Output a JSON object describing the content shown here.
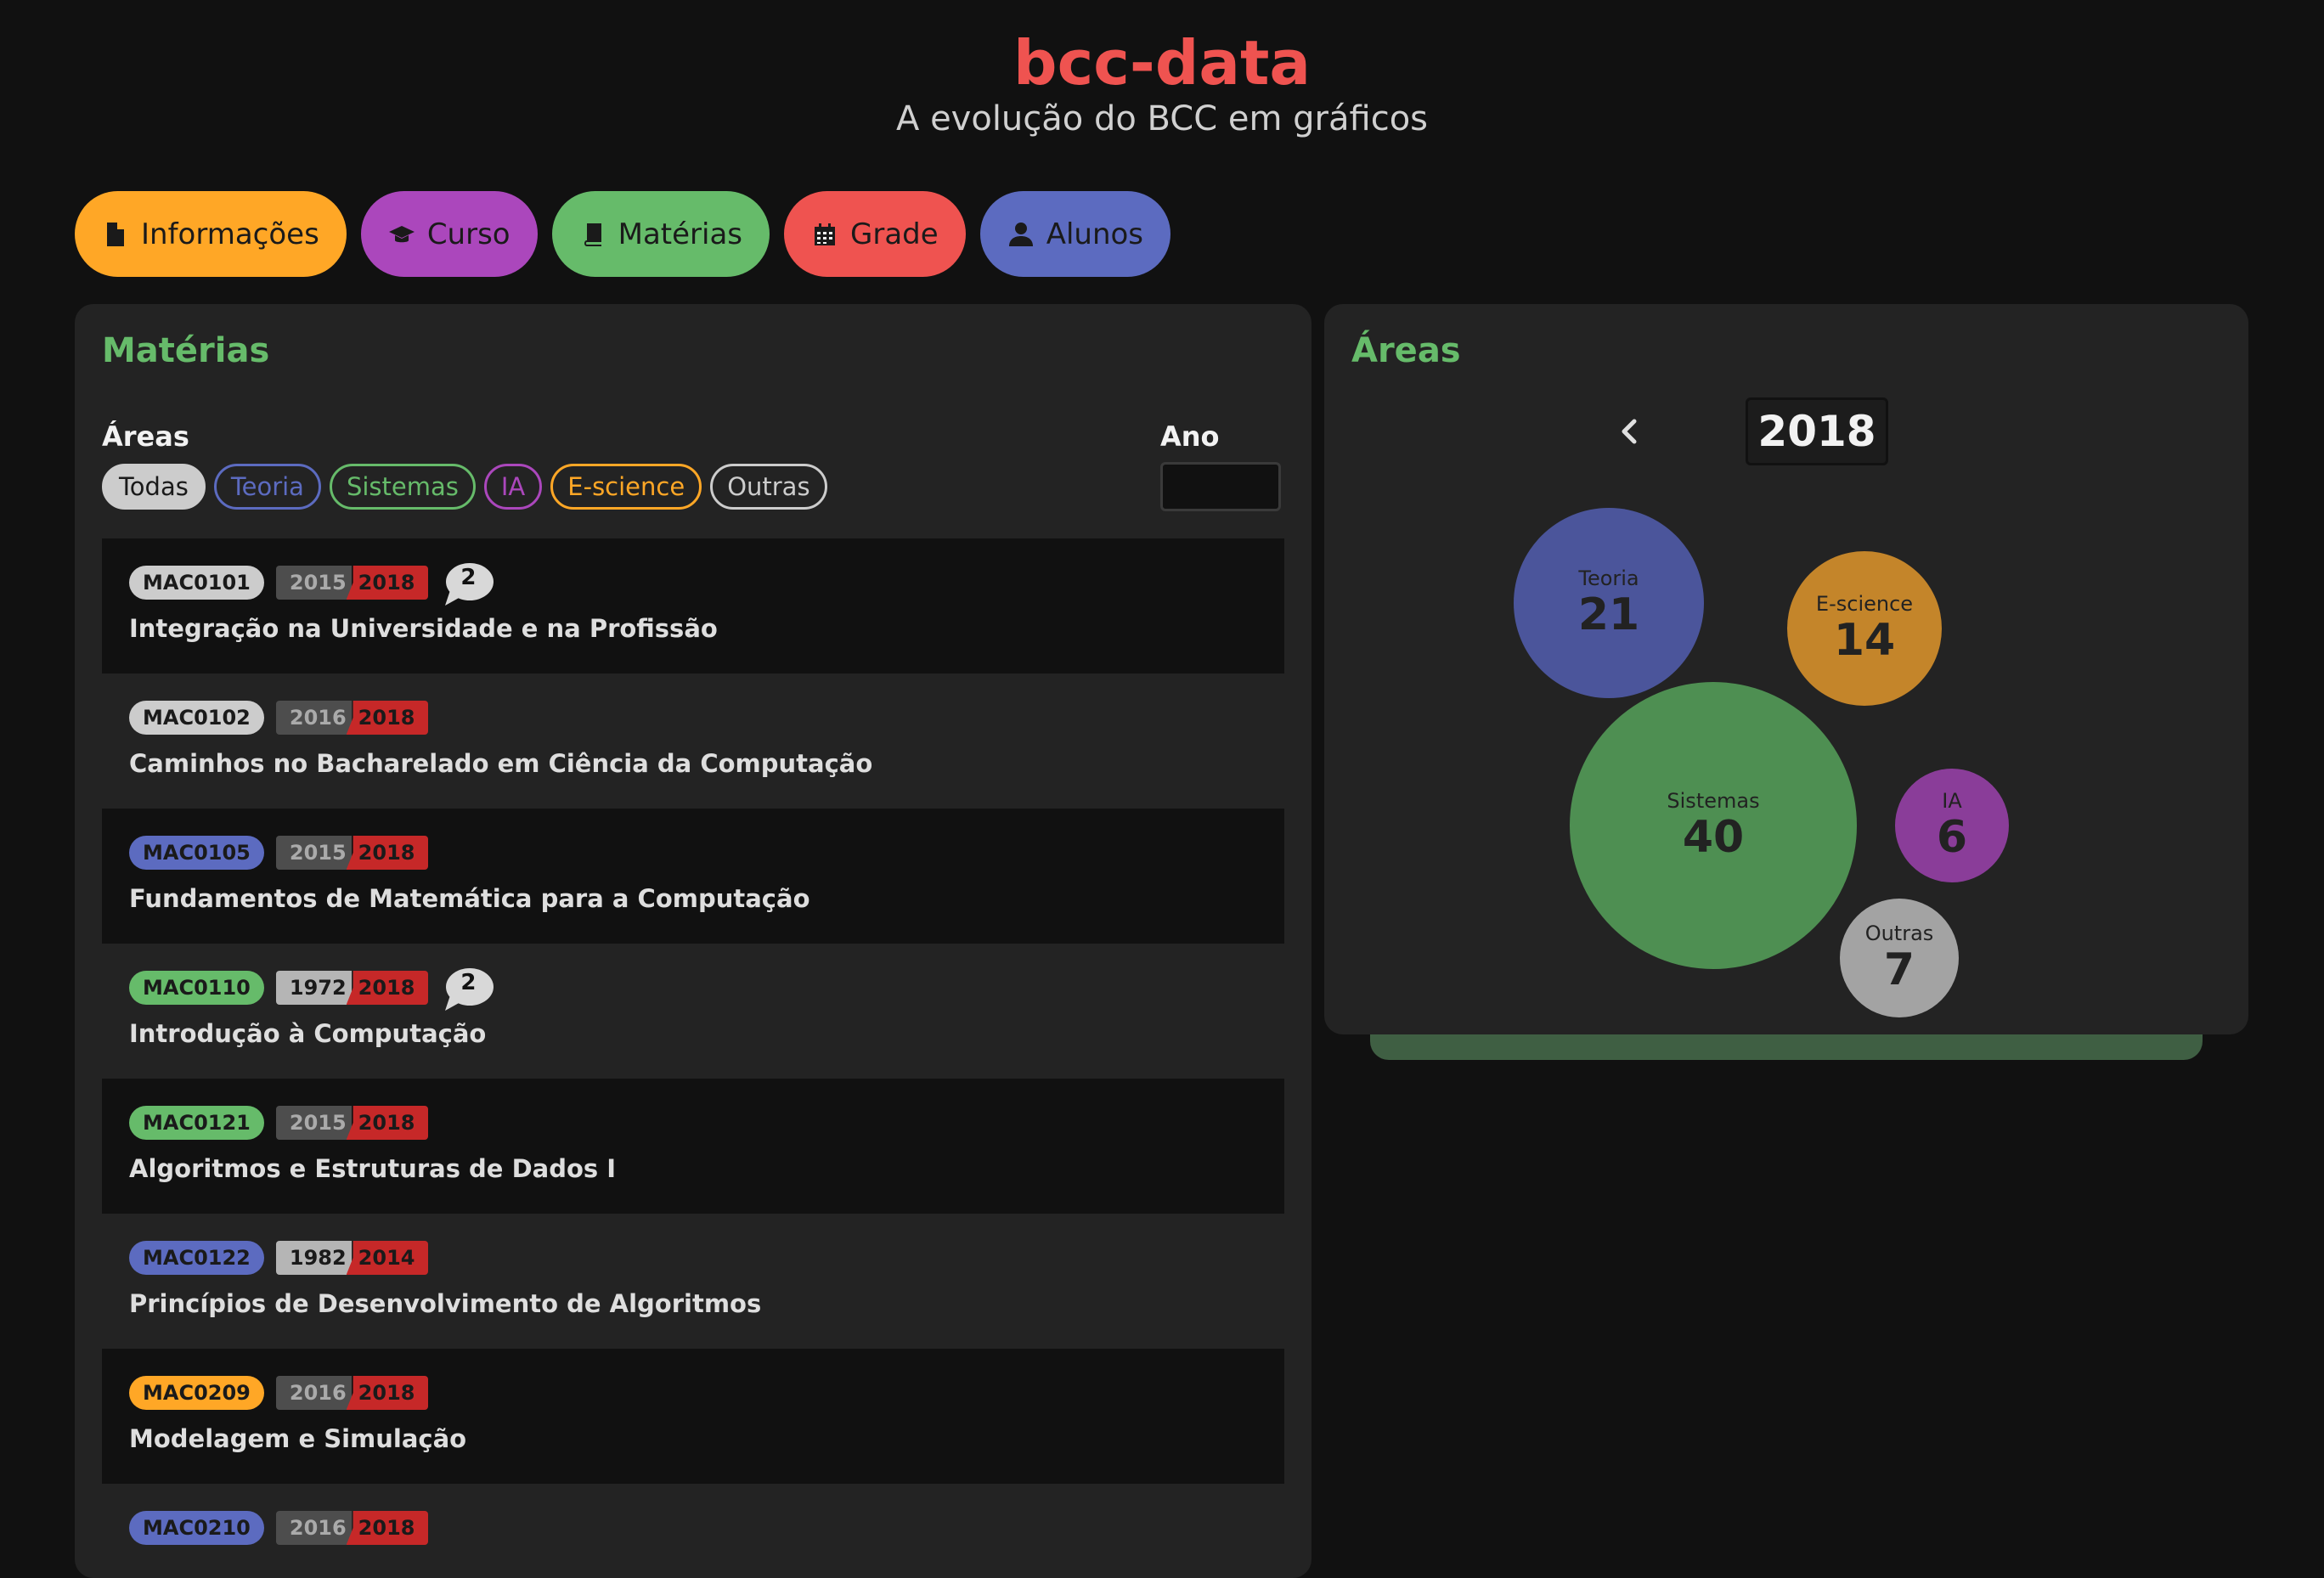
{
  "header": {
    "title": "bcc-data",
    "subtitle": "A evolução do BCC em gráficos"
  },
  "nav": [
    {
      "label": "Informações",
      "icon": "file-icon",
      "color": "#ffa726"
    },
    {
      "label": "Curso",
      "icon": "graduation-cap-icon",
      "color": "#ab47bc"
    },
    {
      "label": "Matérias",
      "icon": "book-icon",
      "color": "#66bb6a"
    },
    {
      "label": "Grade",
      "icon": "calendar-icon",
      "color": "#ef5350"
    },
    {
      "label": "Alunos",
      "icon": "user-icon",
      "color": "#5c6bc0"
    }
  ],
  "subjects_panel": {
    "title": "Matérias",
    "areas_label": "Áreas",
    "year_label": "Ano",
    "year_value": "",
    "chips": [
      {
        "label": "Todas",
        "color": "#cccccc",
        "active": true
      },
      {
        "label": "Teoria",
        "color": "#5c6bc0"
      },
      {
        "label": "Sistemas",
        "color": "#66bb6a"
      },
      {
        "label": "IA",
        "color": "#ab47bc"
      },
      {
        "label": "E-science",
        "color": "#ffa726"
      },
      {
        "label": "Outras",
        "color": "#cccccc"
      }
    ],
    "subjects": [
      {
        "code": "MAC0101",
        "color": "#cccccc",
        "start": "2015",
        "end": "2018",
        "comments": "2",
        "name": "Integração na Universidade e na Profissão"
      },
      {
        "code": "MAC0102",
        "color": "#cccccc",
        "start": "2016",
        "end": "2018",
        "comments": "",
        "name": "Caminhos no Bacharelado em Ciência da Computação"
      },
      {
        "code": "MAC0105",
        "color": "#5c6bc0",
        "start": "2015",
        "end": "2018",
        "comments": "",
        "name": "Fundamentos de Matemática para a Computação"
      },
      {
        "code": "MAC0110",
        "color": "#66bb6a",
        "start": "1972",
        "end": "2018",
        "comments": "2",
        "name": "Introdução à Computação"
      },
      {
        "code": "MAC0121",
        "color": "#66bb6a",
        "start": "2015",
        "end": "2018",
        "comments": "",
        "name": "Algoritmos e Estruturas de Dados I"
      },
      {
        "code": "MAC0122",
        "color": "#5c6bc0",
        "start": "1982",
        "end": "2014",
        "comments": "",
        "name": "Princípios de Desenvolvimento de Algoritmos"
      },
      {
        "code": "MAC0209",
        "color": "#ffa726",
        "start": "2016",
        "end": "2018",
        "comments": "",
        "name": "Modelagem e Simulação"
      },
      {
        "code": "MAC0210",
        "color": "#5c6bc0",
        "start": "2016",
        "end": "2018",
        "comments": "",
        "name": ""
      }
    ]
  },
  "areas_panel": {
    "title": "Áreas",
    "year": "2018",
    "prev_icon": "chevron-left-icon",
    "areas": [
      {
        "label": "Teoria",
        "value": 21,
        "color": "#4b559b"
      },
      {
        "label": "E-science",
        "value": 14,
        "color": "#c4852a"
      },
      {
        "label": "Sistemas",
        "value": 40,
        "color": "#4e8f52"
      },
      {
        "label": "IA",
        "value": 6,
        "color": "#8a3d99"
      },
      {
        "label": "Outras",
        "value": 7,
        "color": "#a3a3a3"
      }
    ]
  }
}
